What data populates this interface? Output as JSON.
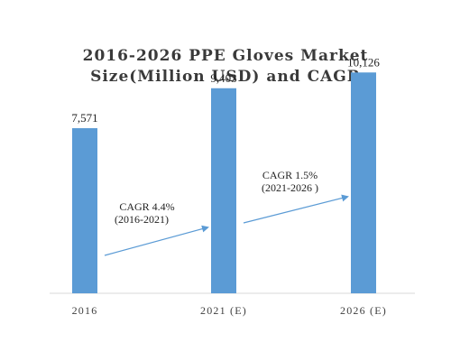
{
  "chart_data": {
    "type": "bar",
    "title_lines": [
      "2016-2026 PPE Gloves Market",
      "Size(Million USD) and CAGR"
    ],
    "categories": [
      "2016",
      "2021 (E)",
      "2026 (E)"
    ],
    "values": [
      7571,
      9403,
      10126
    ],
    "data_labels": [
      "7,571",
      "9,403",
      "10,126"
    ],
    "ylim": [
      0,
      12000
    ],
    "bar_color": "#5b9bd5",
    "arrow_color": "#5b9bd5",
    "grid": false,
    "legend": "none",
    "annotations": [
      {
        "text": "CAGR 4.4%",
        "subtext": "(2016-2021)",
        "from_category": 0,
        "to_category": 1
      },
      {
        "text": "CAGR 1.5%",
        "subtext": "(2021-2026 )",
        "from_category": 1,
        "to_category": 2
      }
    ]
  }
}
